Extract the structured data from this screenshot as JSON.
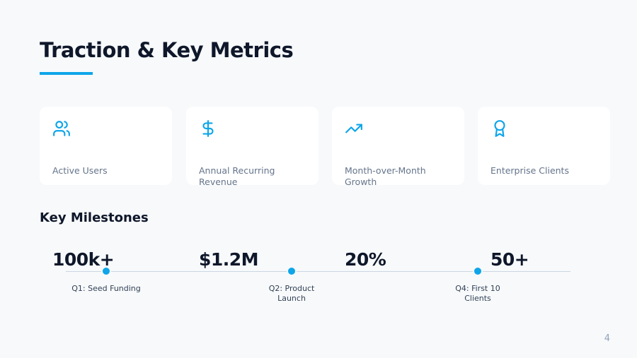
{
  "title": "Traction & Key Metrics",
  "accent": "#0ea5e9",
  "metrics": [
    {
      "icon": "users-icon",
      "value": "100k+",
      "label": "Active Users"
    },
    {
      "icon": "dollar-icon",
      "value": "$1.2M",
      "label": "Annual Recurring Revenue"
    },
    {
      "icon": "trending-up-icon",
      "value": "20%",
      "label": "Month-over-Month Growth"
    },
    {
      "icon": "award-icon",
      "value": "50+",
      "label": "Enterprise Clients"
    }
  ],
  "milestones_title": "Key Milestones",
  "milestones": [
    {
      "label": "Q1: Seed Funding"
    },
    {
      "label": "Q2: Product Launch"
    },
    {
      "label": "Q4: First 10 Clients"
    }
  ],
  "page_number": "4"
}
